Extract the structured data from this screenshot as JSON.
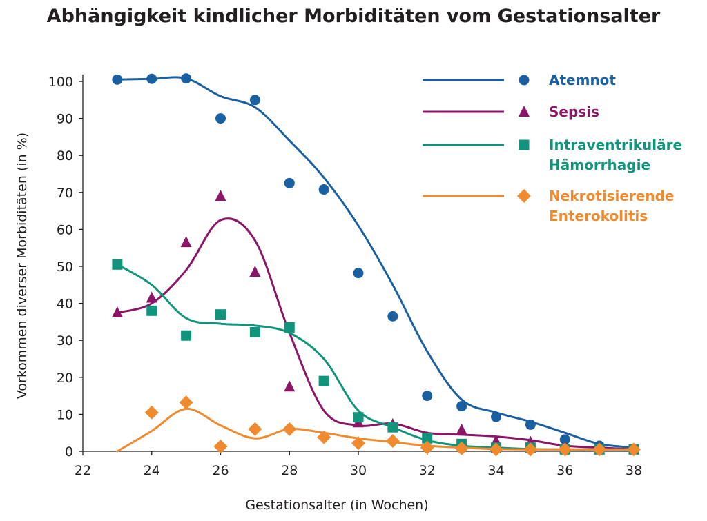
{
  "chart_data": {
    "type": "scatter",
    "title": "Abhängigkeit kindlicher Morbiditäten vom Gestationsalter",
    "xlabel": "Gestationsalter (in Wochen)",
    "ylabel": "Vorkommen diverser Morbiditäten (in %)",
    "xlim": [
      22,
      38
    ],
    "ylim": [
      0,
      100
    ],
    "xticks": [
      22,
      24,
      26,
      28,
      30,
      32,
      34,
      36,
      38
    ],
    "yticks": [
      0,
      10,
      20,
      30,
      40,
      50,
      60,
      70,
      80,
      90,
      100
    ],
    "legend_position": "top-right",
    "grid": false,
    "series": [
      {
        "name": "Atemnot",
        "color": "#1a5fa0",
        "marker": "circle",
        "points": [
          [
            23,
            100.5
          ],
          [
            24,
            100.7
          ],
          [
            25,
            100.8
          ],
          [
            26,
            90
          ],
          [
            27,
            95
          ],
          [
            28,
            72.5
          ],
          [
            29,
            70.8
          ],
          [
            30,
            48.2
          ],
          [
            31,
            36.5
          ],
          [
            32,
            15
          ],
          [
            33,
            12.2
          ],
          [
            34,
            9.3
          ],
          [
            35,
            7.2
          ],
          [
            36,
            3.2
          ],
          [
            37,
            1.5
          ],
          [
            38,
            0.5
          ]
        ],
        "curve": [
          [
            23,
            100.5
          ],
          [
            24,
            100.7
          ],
          [
            25,
            100.8
          ],
          [
            26,
            96
          ],
          [
            27,
            93
          ],
          [
            28,
            84
          ],
          [
            29,
            74
          ],
          [
            30,
            61
          ],
          [
            31,
            45
          ],
          [
            32,
            27
          ],
          [
            33,
            14
          ],
          [
            34,
            10.5
          ],
          [
            35,
            8
          ],
          [
            36,
            5
          ],
          [
            37,
            2
          ],
          [
            38,
            1
          ]
        ]
      },
      {
        "name": "Sepsis",
        "color": "#8b1567",
        "marker": "triangle",
        "points": [
          [
            23,
            37.5
          ],
          [
            24,
            41.5
          ],
          [
            25,
            56.5
          ],
          [
            26,
            69
          ],
          [
            27,
            48.5
          ],
          [
            28,
            17.5
          ],
          [
            29,
            null
          ],
          [
            30,
            7.8
          ],
          [
            31,
            7.3
          ],
          [
            32,
            3.8
          ],
          [
            33,
            5.8
          ],
          [
            34,
            2.8
          ],
          [
            35,
            2.5
          ],
          [
            36,
            1
          ],
          [
            37,
            0.5
          ],
          [
            38,
            0.5
          ]
        ],
        "curve": [
          [
            23,
            37.5
          ],
          [
            24,
            40
          ],
          [
            25,
            49
          ],
          [
            26,
            62.5
          ],
          [
            27,
            57
          ],
          [
            28,
            32
          ],
          [
            29,
            11
          ],
          [
            30,
            7
          ],
          [
            31,
            7.5
          ],
          [
            32,
            5
          ],
          [
            33,
            4.5
          ],
          [
            34,
            4
          ],
          [
            35,
            3
          ],
          [
            36,
            1.5
          ],
          [
            37,
            1
          ],
          [
            38,
            0.5
          ]
        ]
      },
      {
        "name": "Intraventrikuläre Hämorrhagie",
        "color": "#10957c",
        "marker": "square",
        "points": [
          [
            23,
            50.5
          ],
          [
            24,
            38
          ],
          [
            25,
            31.3
          ],
          [
            26,
            37
          ],
          [
            27,
            32.2
          ],
          [
            28,
            33.5
          ],
          [
            29,
            19
          ],
          [
            30,
            9.2
          ],
          [
            31,
            6.5
          ],
          [
            32,
            3.5
          ],
          [
            33,
            2
          ],
          [
            34,
            1
          ],
          [
            35,
            1
          ],
          [
            36,
            0.5
          ],
          [
            37,
            0.5
          ],
          [
            38,
            0.5
          ]
        ],
        "curve": [
          [
            23,
            50.5
          ],
          [
            24,
            45
          ],
          [
            25,
            36
          ],
          [
            26,
            34.5
          ],
          [
            27,
            34
          ],
          [
            28,
            32
          ],
          [
            29,
            25
          ],
          [
            30,
            11
          ],
          [
            31,
            6.5
          ],
          [
            32,
            3
          ],
          [
            33,
            1.5
          ],
          [
            34,
            1
          ],
          [
            35,
            0.6
          ],
          [
            36,
            0.5
          ],
          [
            37,
            0.5
          ],
          [
            38,
            0.5
          ]
        ]
      },
      {
        "name": "Nekrotisierende Enterokolitis",
        "color": "#ef8a2e",
        "marker": "diamond",
        "points": [
          [
            23,
            null
          ],
          [
            24,
            10.5
          ],
          [
            25,
            13.2
          ],
          [
            26,
            1.3
          ],
          [
            27,
            6
          ],
          [
            28,
            6
          ],
          [
            29,
            3.8
          ],
          [
            30,
            2.2
          ],
          [
            31,
            2.8
          ],
          [
            32,
            1
          ],
          [
            33,
            0.8
          ],
          [
            34,
            0.5
          ],
          [
            35,
            0.5
          ],
          [
            36,
            0.5
          ],
          [
            37,
            0.5
          ],
          [
            38,
            0.5
          ]
        ],
        "curve": [
          [
            23,
            0
          ],
          [
            24,
            5.5
          ],
          [
            25,
            11.5
          ],
          [
            26,
            7
          ],
          [
            27,
            3.5
          ],
          [
            28,
            6
          ],
          [
            29,
            5
          ],
          [
            30,
            3.5
          ],
          [
            31,
            2.5
          ],
          [
            32,
            1.5
          ],
          [
            33,
            1
          ],
          [
            34,
            0.6
          ],
          [
            35,
            0.5
          ],
          [
            36,
            0.5
          ],
          [
            37,
            0.5
          ],
          [
            38,
            0.5
          ]
        ]
      }
    ],
    "legend": [
      {
        "lines": [
          "Atemnot"
        ]
      },
      {
        "lines": [
          "Sepsis"
        ]
      },
      {
        "lines": [
          "Intraventrikuläre",
          "Hämorrhagie"
        ]
      },
      {
        "lines": [
          "Nekrotisierende",
          "Enterokolitis"
        ]
      }
    ]
  }
}
